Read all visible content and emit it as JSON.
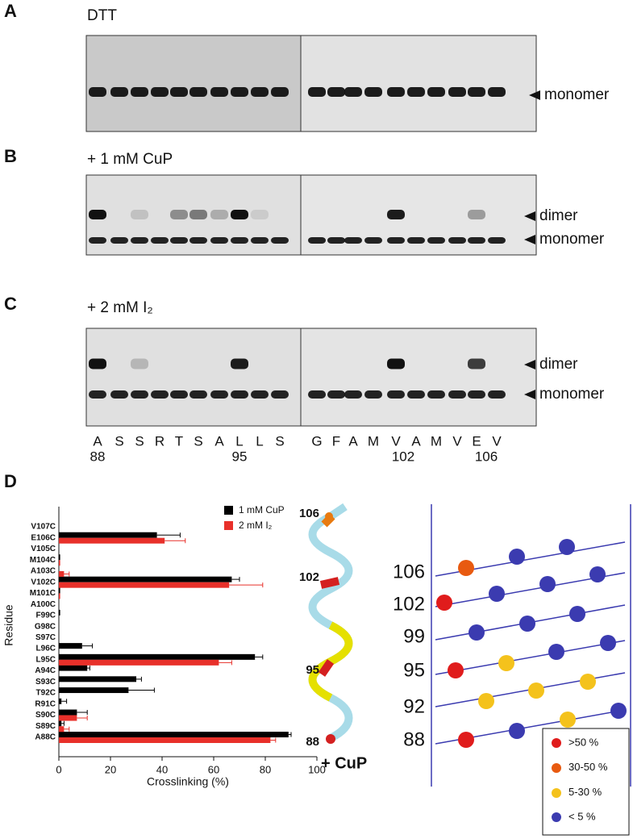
{
  "panels": [
    {
      "letter": "A",
      "title": "DTT"
    },
    {
      "letter": "B",
      "title": "+ 1 mM CuP"
    },
    {
      "letter": "C",
      "title": "+ 2 mM I₂"
    },
    {
      "letter": "D"
    }
  ],
  "gel_labels": {
    "monomer": "monomer",
    "dimer": "dimer"
  },
  "lanes": [
    "A",
    "S",
    "S",
    "R",
    "T",
    "S",
    "A",
    "L",
    "L",
    "S",
    "G",
    "F",
    "A",
    "M",
    "V",
    "A",
    "M",
    "V",
    "E",
    "V"
  ],
  "lane_numbers": [
    88,
    95,
    102,
    106
  ],
  "chart_data": {
    "type": "bar",
    "orientation": "horizontal",
    "xlabel": "Crosslinking (%)",
    "ylabel": "Residue",
    "categories": [
      "V107C",
      "E106C",
      "V105C",
      "M104C",
      "A103C",
      "V102C",
      "M101C",
      "A100C",
      "F99C",
      "G98C",
      "S97C",
      "L96C",
      "L95C",
      "A94C",
      "S93C",
      "T92C",
      "R91C",
      "S90C",
      "S89C",
      "A88C"
    ],
    "series": [
      {
        "name": "1 mM CuP",
        "color": "#000000",
        "values": [
          0,
          38,
          0,
          0.5,
          0,
          67,
          0.5,
          0,
          0.5,
          0,
          0,
          9,
          76,
          11,
          30,
          27,
          1,
          7,
          1,
          89
        ],
        "errors": [
          0,
          9,
          0,
          0,
          0,
          3,
          0,
          0,
          0,
          0,
          0,
          4,
          3,
          1,
          2,
          10,
          2,
          4,
          1,
          1
        ]
      },
      {
        "name": "2 mM I₂",
        "color": "#e8302a",
        "values": [
          0,
          41,
          0,
          0.5,
          2,
          66,
          0.5,
          0,
          0,
          0,
          0,
          0,
          62,
          0,
          0,
          0,
          0,
          7,
          2,
          82
        ],
        "errors": [
          0,
          8,
          0,
          0,
          2,
          13,
          0,
          0,
          0,
          0,
          0,
          0,
          5,
          0,
          0,
          0,
          0,
          4,
          2,
          2
        ]
      }
    ],
    "xlim": [
      0,
      100
    ],
    "xticks": [
      0,
      20,
      40,
      60,
      80,
      100
    ],
    "legend": "top-right"
  },
  "helix": {
    "labels": [
      106,
      102,
      95,
      88
    ],
    "caption": "+ CuP"
  },
  "helical_net": {
    "rows": [
      106,
      102,
      99,
      95,
      92,
      88
    ],
    "legend": [
      ">50 %",
      "30-50 %",
      "5-30 %",
      "< 5 %"
    ]
  }
}
